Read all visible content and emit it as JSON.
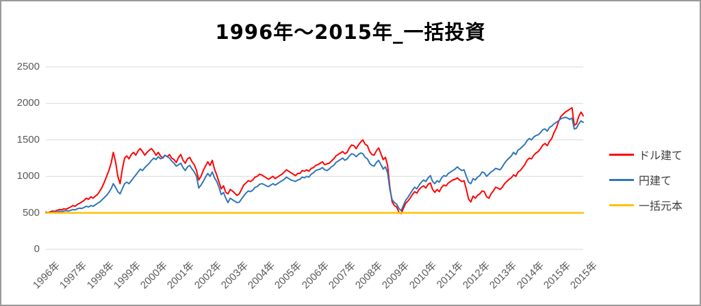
{
  "frame": {
    "background": "#ffffff",
    "border_color": "#9a9a9a"
  },
  "chart_data": {
    "type": "line",
    "title": "1996年～2015年_一括投資",
    "title_color": "#000000",
    "x_unit": "month",
    "x_tick_labels": [
      "1996年",
      "1997年",
      "1998年",
      "1999年",
      "2000年",
      "2001年",
      "2002年",
      "2003年",
      "2004年",
      "2005年",
      "2006年",
      "2007年",
      "2008年",
      "2009年",
      "2010年",
      "2011年",
      "2012年",
      "2013年",
      "2014年",
      "2015年",
      "2015年"
    ],
    "y_ticks": [
      0,
      500,
      1000,
      1500,
      2000,
      2500
    ],
    "ylim": [
      0,
      2500
    ],
    "grid": "horizontal",
    "grid_color": "#d9d9d9",
    "axis_text_color": "#595959",
    "legend_position": "right",
    "legend_text_color": "#404040",
    "series": [
      {
        "name": "ドル建て",
        "color": "#ff0000",
        "values": [
          510,
          505,
          515,
          525,
          520,
          535,
          545,
          540,
          555,
          550,
          565,
          580,
          600,
          590,
          615,
          630,
          650,
          670,
          700,
          685,
          720,
          700,
          730,
          750,
          800,
          850,
          920,
          1000,
          1080,
          1180,
          1330,
          1200,
          1000,
          900,
          1100,
          1250,
          1280,
          1240,
          1300,
          1330,
          1290,
          1350,
          1380,
          1340,
          1290,
          1330,
          1360,
          1380,
          1340,
          1290,
          1330,
          1280,
          1250,
          1290,
          1270,
          1300,
          1250,
          1230,
          1190,
          1260,
          1300,
          1220,
          1180,
          1240,
          1260,
          1200,
          1160,
          1080,
          950,
          1000,
          1080,
          1140,
          1200,
          1150,
          1220,
          1100,
          1020,
          920,
          830,
          870,
          780,
          760,
          820,
          800,
          770,
          740,
          760,
          820,
          880,
          910,
          940,
          930,
          950,
          990,
          1000,
          1030,
          1020,
          1000,
          980,
          960,
          980,
          1000,
          970,
          990,
          1010,
          1030,
          1060,
          1090,
          1070,
          1050,
          1030,
          1010,
          1040,
          1040,
          1080,
          1070,
          1090,
          1070,
          1110,
          1120,
          1150,
          1160,
          1180,
          1200,
          1160,
          1170,
          1180,
          1210,
          1240,
          1280,
          1300,
          1320,
          1340,
          1310,
          1330,
          1390,
          1430,
          1420,
          1380,
          1430,
          1470,
          1500,
          1440,
          1420,
          1340,
          1300,
          1290,
          1350,
          1390,
          1310,
          1230,
          1260,
          1150,
          850,
          650,
          600,
          580,
          510,
          490,
          560,
          630,
          660,
          700,
          750,
          790,
          770,
          820,
          850,
          870,
          840,
          890,
          910,
          820,
          780,
          820,
          790,
          850,
          880,
          870,
          910,
          930,
          950,
          960,
          980,
          950,
          930,
          940,
          820,
          690,
          650,
          730,
          700,
          740,
          760,
          800,
          790,
          720,
          700,
          760,
          800,
          850,
          840,
          820,
          850,
          900,
          930,
          960,
          980,
          1020,
          1000,
          1060,
          1080,
          1120,
          1160,
          1220,
          1250,
          1240,
          1290,
          1320,
          1340,
          1380,
          1430,
          1450,
          1420,
          1480,
          1520,
          1600,
          1660,
          1750,
          1820,
          1850,
          1880,
          1900,
          1920,
          1940,
          1700,
          1720,
          1820,
          1880,
          1830
        ]
      },
      {
        "name": "円建て",
        "color": "#2e75b6",
        "values": [
          500,
          505,
          500,
          510,
          515,
          510,
          520,
          515,
          525,
          530,
          525,
          535,
          545,
          540,
          555,
          565,
          560,
          575,
          590,
          580,
          600,
          590,
          610,
          630,
          650,
          680,
          710,
          740,
          780,
          830,
          900,
          850,
          790,
          760,
          830,
          900,
          920,
          900,
          940,
          980,
          1020,
          1060,
          1100,
          1080,
          1120,
          1150,
          1180,
          1220,
          1250,
          1230,
          1270,
          1240,
          1260,
          1290,
          1270,
          1250,
          1210,
          1180,
          1140,
          1160,
          1180,
          1120,
          1080,
          1130,
          1150,
          1100,
          1060,
          1000,
          840,
          880,
          930,
          990,
          1040,
          1000,
          1060,
          980,
          930,
          850,
          750,
          780,
          700,
          640,
          700,
          680,
          660,
          640,
          645,
          690,
          730,
          770,
          800,
          790,
          810,
          850,
          860,
          890,
          900,
          890,
          870,
          860,
          880,
          900,
          880,
          900,
          920,
          940,
          960,
          990,
          970,
          950,
          940,
          930,
          950,
          960,
          990,
          980,
          1000,
          990,
          1030,
          1050,
          1080,
          1090,
          1100,
          1120,
          1090,
          1080,
          1100,
          1130,
          1150,
          1190,
          1210,
          1230,
          1250,
          1220,
          1240,
          1280,
          1310,
          1300,
          1270,
          1300,
          1320,
          1310,
          1260,
          1240,
          1180,
          1150,
          1140,
          1190,
          1220,
          1160,
          1100,
          1130,
          1050,
          820,
          680,
          640,
          620,
          560,
          530,
          600,
          670,
          710,
          760,
          810,
          850,
          830,
          880,
          920,
          950,
          930,
          980,
          1010,
          930,
          900,
          940,
          920,
          980,
          1010,
          1000,
          1040,
          1060,
          1080,
          1100,
          1130,
          1100,
          1080,
          1090,
          1000,
          920,
          900,
          970,
          950,
          990,
          1010,
          1060,
          1050,
          1000,
          1030,
          1060,
          1080,
          1110,
          1100,
          1090,
          1130,
          1180,
          1220,
          1250,
          1280,
          1330,
          1300,
          1360,
          1380,
          1410,
          1440,
          1490,
          1520,
          1500,
          1540,
          1560,
          1570,
          1600,
          1640,
          1650,
          1620,
          1670,
          1690,
          1720,
          1740,
          1760,
          1790,
          1800,
          1810,
          1800,
          1780,
          1800,
          1650,
          1660,
          1720,
          1760,
          1740
        ]
      },
      {
        "name": "一括元本",
        "color": "#ffc000",
        "constant": 500
      }
    ]
  }
}
